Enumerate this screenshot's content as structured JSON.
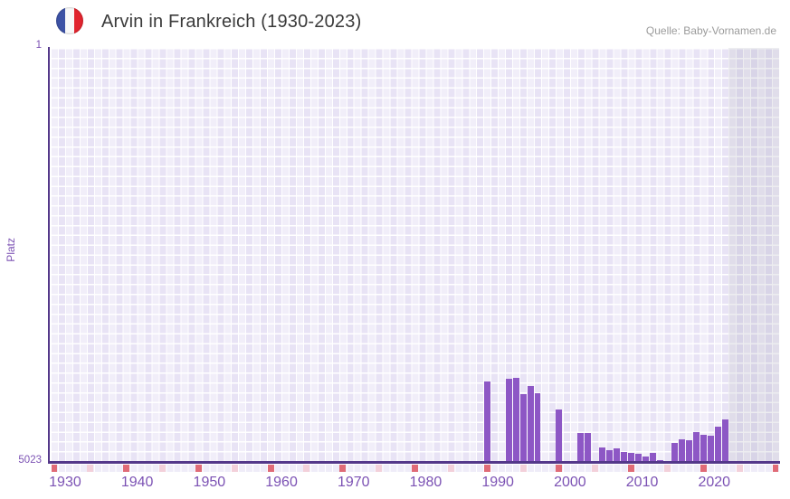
{
  "header": {
    "title": "Arvin in Frankreich (1930-2023)",
    "source": "Quelle: Baby-Vornamen.de",
    "flag_icon": {
      "name": "france-flag-icon",
      "blue": "#3D52A5",
      "white": "#F8F8F8",
      "red": "#E1242E"
    }
  },
  "y_axis": {
    "title": "Platz",
    "top_label": "1",
    "bottom_label": "5023"
  },
  "x_axis": {
    "tick_years": [
      1930,
      1940,
      1950,
      1960,
      1970,
      1980,
      1990,
      2000,
      2010,
      2020
    ]
  },
  "chart_data": {
    "type": "bar",
    "title": "Arvin in Frankreich (1930-2023)",
    "xlabel": "",
    "ylabel": "Platz",
    "ylim": [
      1,
      5023
    ],
    "y_axis_reversed": true,
    "x_domain": [
      1928,
      2028
    ],
    "grid": "checkered-lavender",
    "legend": "none",
    "bar_color": "#8D57C5",
    "points": [
      {
        "year": 1988,
        "rank": 4057
      },
      {
        "year": 1991,
        "rank": 4026
      },
      {
        "year": 1992,
        "rank": 4015
      },
      {
        "year": 1993,
        "rank": 4210
      },
      {
        "year": 1994,
        "rank": 4107
      },
      {
        "year": 1995,
        "rank": 4198
      },
      {
        "year": 1998,
        "rank": 4399
      },
      {
        "year": 2001,
        "rank": 4682
      },
      {
        "year": 2002,
        "rank": 4682
      },
      {
        "year": 2004,
        "rank": 4857
      },
      {
        "year": 2005,
        "rank": 4890
      },
      {
        "year": 2006,
        "rank": 4868
      },
      {
        "year": 2007,
        "rank": 4909
      },
      {
        "year": 2008,
        "rank": 4923
      },
      {
        "year": 2009,
        "rank": 4937
      },
      {
        "year": 2010,
        "rank": 4967
      },
      {
        "year": 2011,
        "rank": 4923
      },
      {
        "year": 2012,
        "rank": 5015
      },
      {
        "year": 2014,
        "rank": 4803
      },
      {
        "year": 2015,
        "rank": 4755
      },
      {
        "year": 2016,
        "rank": 4773
      },
      {
        "year": 2017,
        "rank": 4674
      },
      {
        "year": 2018,
        "rank": 4705
      },
      {
        "year": 2019,
        "rank": 4712
      },
      {
        "year": 2020,
        "rank": 4602
      },
      {
        "year": 2021,
        "rank": 4521
      }
    ],
    "no_data_band_years": [
      2022,
      2028
    ],
    "marker_red_years": [
      1928,
      1938,
      1948,
      1958,
      1968,
      1978,
      1988,
      1998,
      2008,
      2018,
      2028
    ],
    "marker_pink_years": [
      1933,
      1943,
      1953,
      1963,
      1973,
      1983,
      1993,
      2003,
      2013,
      2023
    ],
    "marker_red_color": "#E06B77",
    "marker_pink_color": "#F3D0DA"
  }
}
